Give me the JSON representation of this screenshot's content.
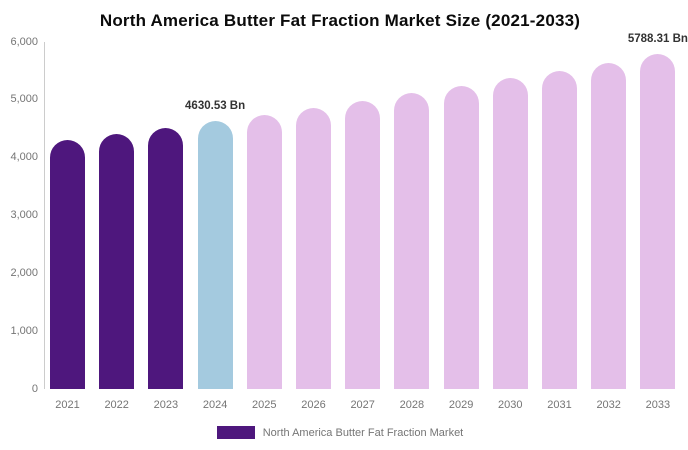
{
  "title": "North America Butter Fat Fraction Market Size (2021-2033)",
  "chart_data": {
    "type": "bar",
    "title": "North America Butter Fat Fraction Market Size (2021-2033)",
    "categories": [
      "2021",
      "2022",
      "2023",
      "2024",
      "2025",
      "2026",
      "2027",
      "2028",
      "2029",
      "2030",
      "2031",
      "2032",
      "2033"
    ],
    "series": [
      {
        "name": "North America Butter Fat Fraction Market",
        "values": [
          4300,
          4405,
          4517,
          4630.53,
          4747,
          4866,
          4988,
          5113,
          5241,
          5373,
          5507,
          5646,
          5788.31
        ]
      }
    ],
    "ylabel": "",
    "xlabel": "",
    "ylim": [
      0,
      6000
    ],
    "ytick_labels": [
      "0",
      "1,000",
      "2,000",
      "3,000",
      "4,000",
      "5,000",
      "6,000"
    ],
    "grid": false,
    "legend_position": "bottom",
    "bar_roles": [
      "historical",
      "historical",
      "historical",
      "highlight",
      "forecast",
      "forecast",
      "forecast",
      "forecast",
      "forecast",
      "forecast",
      "forecast",
      "forecast",
      "forecast"
    ],
    "palette": {
      "historical": "#4e177d",
      "highlight": "#a4cadf",
      "forecast": "#e4bfe9"
    },
    "annotations": [
      {
        "category": "2024",
        "text": "4630.53 Bn"
      },
      {
        "category": "2033",
        "text": "5788.31 Bn"
      }
    ],
    "legend": [
      {
        "label": "North America Butter Fat Fraction Market",
        "color": "#4e177d"
      }
    ]
  }
}
